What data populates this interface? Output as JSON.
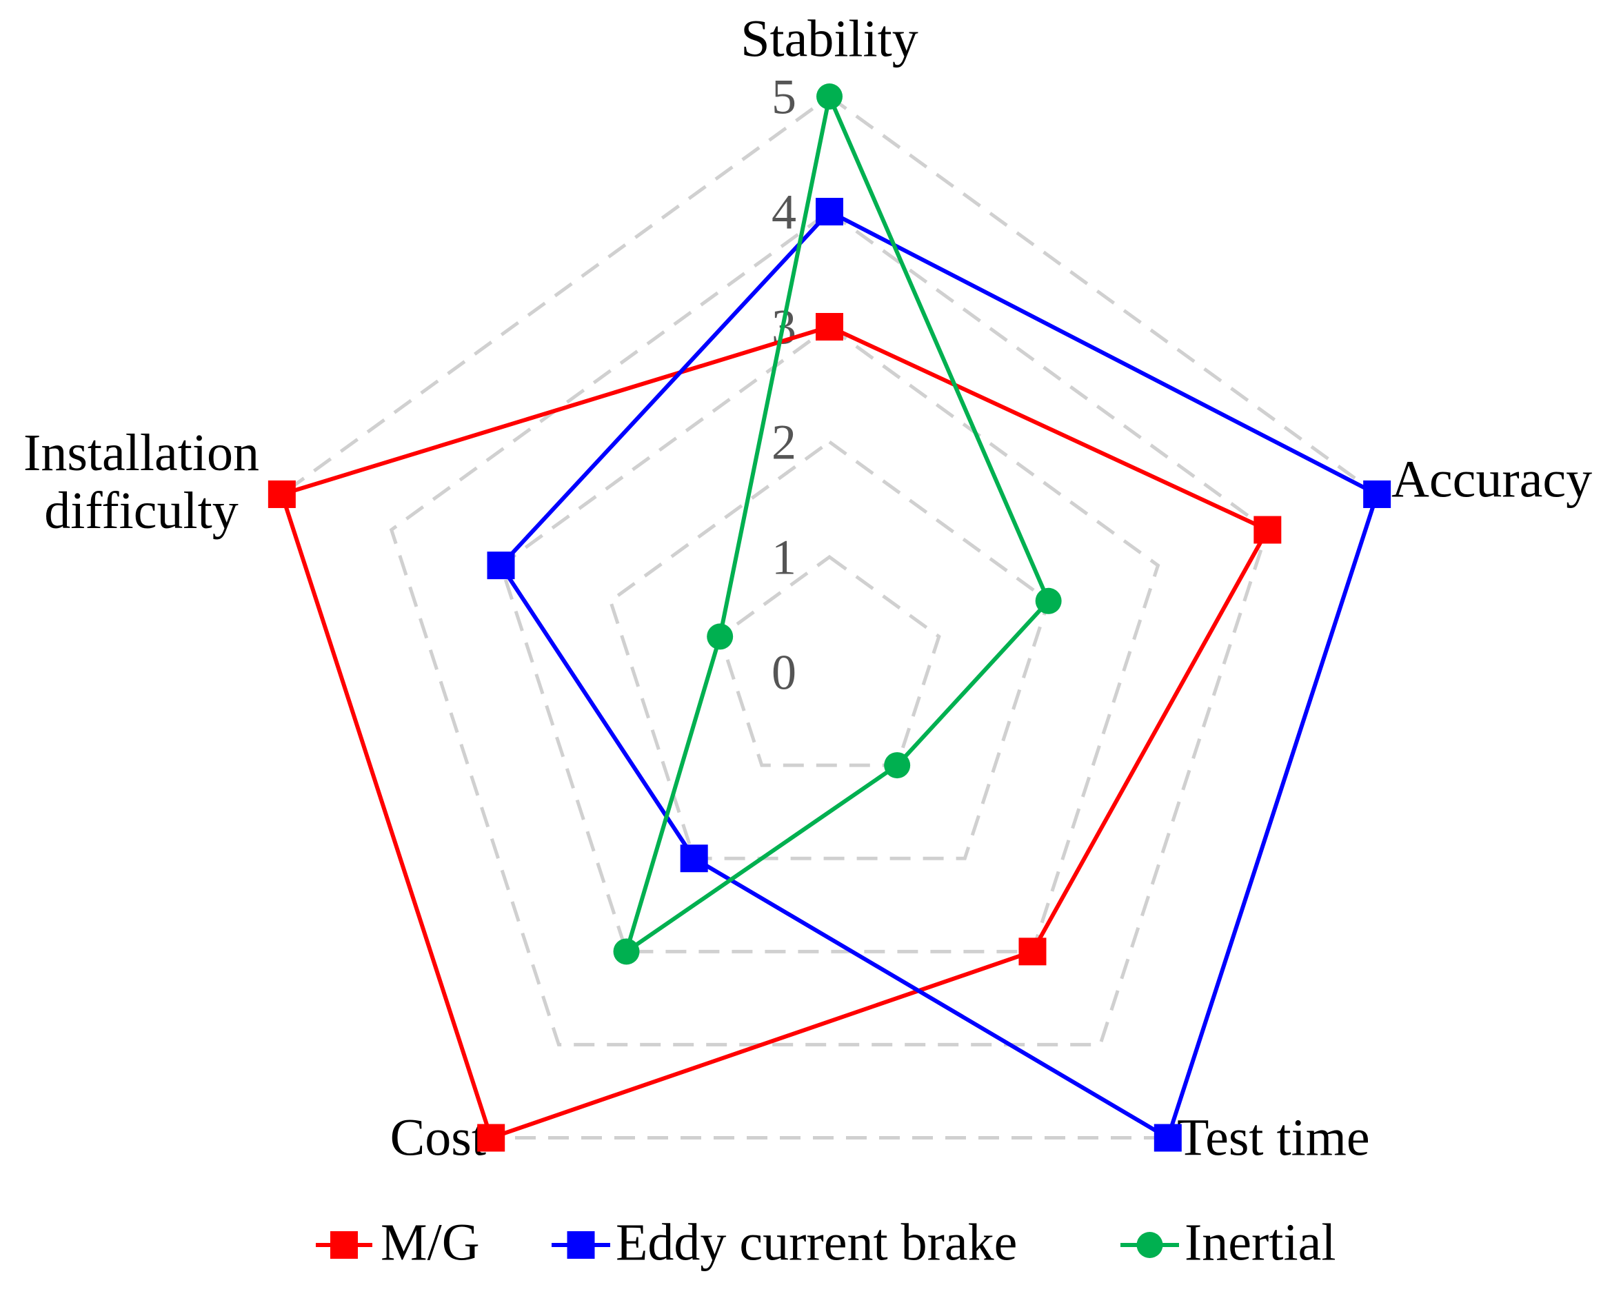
{
  "chart_data": {
    "type": "radar",
    "categories": [
      "Stability",
      "Accuracy",
      "Test time",
      "Cost",
      "Installation difficulty"
    ],
    "series": [
      {
        "name": "M/G",
        "color": "#ff0000",
        "marker": "square",
        "values": [
          3,
          4,
          3,
          5,
          5
        ]
      },
      {
        "name": "Eddy current brake",
        "color": "#0000ff",
        "marker": "square",
        "values": [
          4,
          5,
          5,
          2,
          3
        ]
      },
      {
        "name": "Inertial",
        "color": "#00b050",
        "marker": "circle",
        "values": [
          5,
          2,
          1,
          3,
          1
        ]
      }
    ],
    "ylim": [
      0,
      5
    ],
    "yticks": [
      0,
      1,
      2,
      3,
      4,
      5
    ],
    "grid": true,
    "legend": "bottom"
  }
}
